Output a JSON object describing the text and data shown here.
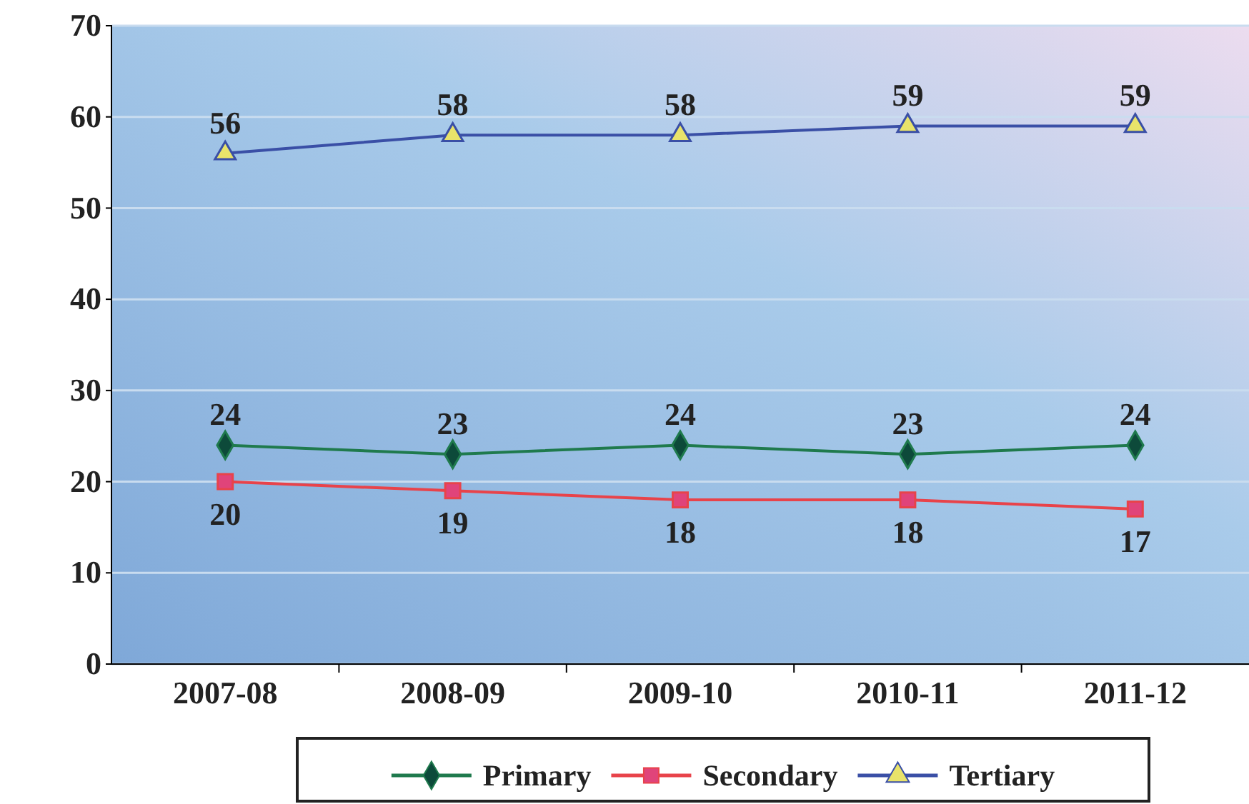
{
  "chart_data": {
    "type": "line",
    "categories": [
      "2007-08",
      "2008-09",
      "2009-10",
      "2010-11",
      "2011-12"
    ],
    "series": [
      {
        "name": "Primary",
        "color": "#1f7a4d",
        "marker": "diamond",
        "values": [
          24,
          23,
          24,
          23,
          24
        ]
      },
      {
        "name": "Secondary",
        "color": "#e8434a",
        "marker": "square",
        "values": [
          20,
          19,
          18,
          18,
          17
        ]
      },
      {
        "name": "Tertiary",
        "color": "#3a4fa6",
        "marker": "triangle",
        "values": [
          56,
          58,
          58,
          59,
          59
        ]
      }
    ],
    "ylim": [
      0,
      70
    ],
    "yticks": [
      0,
      10,
      20,
      30,
      40,
      50,
      60,
      70
    ],
    "grid": "y",
    "data_labels": true,
    "legend": "bottom"
  }
}
